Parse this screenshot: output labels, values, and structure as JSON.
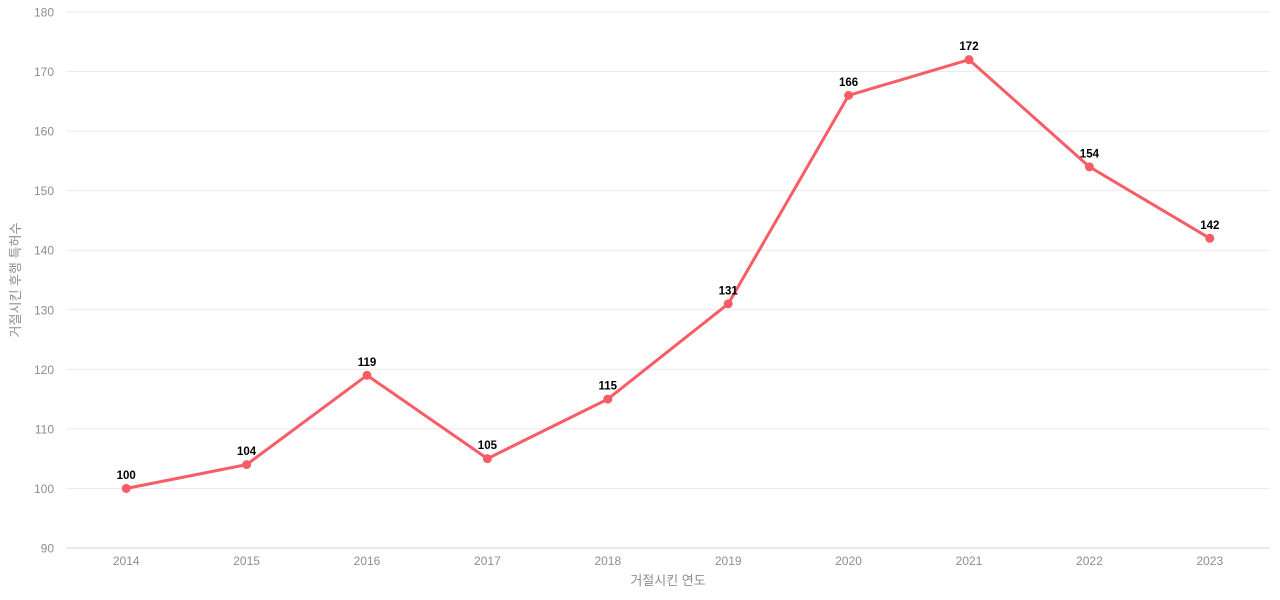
{
  "chart_data": {
    "type": "line",
    "categories": [
      "2014",
      "2015",
      "2016",
      "2017",
      "2018",
      "2019",
      "2020",
      "2021",
      "2022",
      "2023"
    ],
    "series": [
      {
        "name": "거절시킨 후행 특허수",
        "values": [
          100,
          104,
          119,
          105,
          115,
          131,
          166,
          172,
          154,
          142
        ]
      }
    ],
    "title": "",
    "xlabel": "거절시킨 연도",
    "ylabel": "거절시킨 후행 특허수",
    "ylim": [
      90,
      180
    ],
    "ytick_step": 10,
    "yticks": [
      90,
      100,
      110,
      120,
      130,
      140,
      150,
      160,
      170,
      180
    ],
    "grid": true,
    "legend": "none",
    "colors": {
      "line": "#F85D66",
      "marker": "#F85D66",
      "value_label": "#000000",
      "tick_label": "#8e8e8e",
      "axis_title": "#8e8e8e",
      "gridline": "#ebebeb",
      "baseline": "#ccd6e3",
      "background": "#ffffff"
    }
  }
}
